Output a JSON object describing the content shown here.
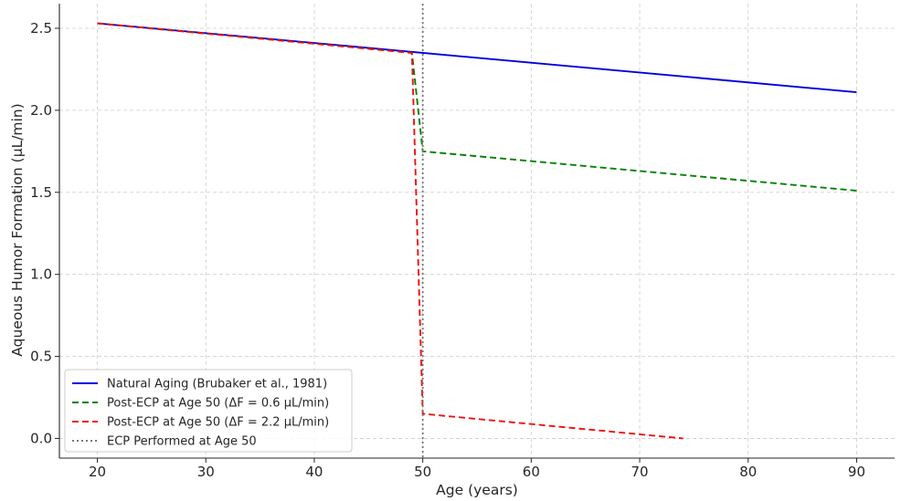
{
  "chart_data": {
    "type": "line",
    "title": "",
    "xlabel": "Age (years)",
    "ylabel": "Aqueous Humor Formation (µL/min)",
    "xlim": [
      16.5,
      93.5
    ],
    "ylim": [
      -0.12,
      2.65
    ],
    "xticks": [
      20,
      30,
      40,
      50,
      60,
      70,
      80,
      90
    ],
    "yticks": [
      0.0,
      0.5,
      1.0,
      1.5,
      2.0,
      2.5
    ],
    "xtick_labels": [
      "20",
      "30",
      "40",
      "50",
      "60",
      "70",
      "80",
      "90"
    ],
    "ytick_labels": [
      "0.0",
      "0.5",
      "1.0",
      "1.5",
      "2.0",
      "2.5"
    ],
    "grid": true,
    "legend_position": "lower-left",
    "series": [
      {
        "name": "Natural Aging (Brubaker et al., 1981)",
        "color": "#0000dd",
        "style": "solid",
        "points": [
          [
            20,
            2.53
          ],
          [
            90,
            2.11
          ]
        ]
      },
      {
        "name": "Post-ECP at Age 50 (ΔF = 0.6 µL/min)",
        "color": "#008000",
        "style": "dashed",
        "points": [
          [
            20,
            2.53
          ],
          [
            49,
            2.35
          ],
          [
            50,
            1.75
          ],
          [
            90,
            1.51
          ]
        ]
      },
      {
        "name": "Post-ECP at Age 50 (ΔF = 2.2 µL/min)",
        "color": "#ee1111",
        "style": "dashed",
        "points": [
          [
            20,
            2.53
          ],
          [
            49,
            2.35
          ],
          [
            50,
            0.15
          ],
          [
            74,
            0.0
          ]
        ]
      },
      {
        "name": "ECP Performed at Age 50",
        "color": "#777777",
        "style": "dotted",
        "vline_x": 50
      }
    ]
  }
}
